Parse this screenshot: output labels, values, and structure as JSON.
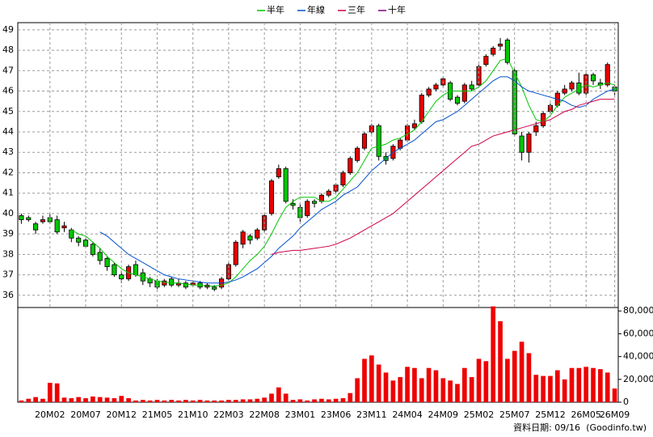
{
  "chart_data": [
    {
      "type": "candlestick",
      "open": [
        39.9,
        39.8,
        39.5,
        39.6,
        39.8,
        39.7,
        39.3,
        39.2,
        38.8,
        38.7,
        38.5,
        38.1,
        37.8,
        37.5,
        37.0,
        36.8,
        37.5,
        37.1,
        36.8,
        36.7,
        36.5,
        36.8,
        36.5,
        36.6,
        36.5,
        36.6,
        36.4,
        36.4,
        36.4,
        36.8,
        37.5,
        38.5,
        38.9,
        38.8,
        39.2,
        40.0,
        41.8,
        42.2,
        40.5,
        40.3,
        39.9,
        40.6,
        40.6,
        40.9,
        41.1,
        41.4,
        42.0,
        42.6,
        43.2,
        44.0,
        44.3,
        42.8,
        42.7,
        43.2,
        43.6,
        44.2,
        44.5,
        45.8,
        46.1,
        46.3,
        46.4,
        45.7,
        45.5,
        46.3,
        46.3,
        47.3,
        47.8,
        48.2,
        48.5,
        47.0,
        43.8,
        43.0,
        44.0,
        44.3,
        45.0,
        45.3,
        45.9,
        46.1,
        46.4,
        45.9,
        46.8,
        46.4,
        46.3,
        46.2
      ],
      "high": [
        40.0,
        39.9,
        39.6,
        39.9,
        40.0,
        39.9,
        39.6,
        39.3,
        38.9,
        38.8,
        38.6,
        38.3,
        37.9,
        37.6,
        37.2,
        37.5,
        37.7,
        37.3,
        36.9,
        36.8,
        36.8,
        36.9,
        36.8,
        36.7,
        36.7,
        36.7,
        36.6,
        36.5,
        36.9,
        37.6,
        38.7,
        39.2,
        39.0,
        39.3,
        40.0,
        41.7,
        42.4,
        42.3,
        40.7,
        40.5,
        40.7,
        40.7,
        41.0,
        41.2,
        41.5,
        42.1,
        42.8,
        43.3,
        44.0,
        44.4,
        44.4,
        43.0,
        43.4,
        43.7,
        44.4,
        44.6,
        45.9,
        46.2,
        46.4,
        46.7,
        46.5,
        45.8,
        46.4,
        46.5,
        47.3,
        47.8,
        48.2,
        48.6,
        48.6,
        47.1,
        44.0,
        44.0,
        44.5,
        45.0,
        45.4,
        46.0,
        46.3,
        46.5,
        46.9,
        46.9,
        46.9,
        46.6,
        47.4,
        46.3
      ],
      "low": [
        39.5,
        39.6,
        39.0,
        39.5,
        39.5,
        39.0,
        39.1,
        38.6,
        38.4,
        38.3,
        37.9,
        37.5,
        37.2,
        36.9,
        36.6,
        36.7,
        36.9,
        36.5,
        36.4,
        36.3,
        36.4,
        36.4,
        36.4,
        36.3,
        36.4,
        36.3,
        36.3,
        36.2,
        36.3,
        36.7,
        37.4,
        38.3,
        38.5,
        38.7,
        39.1,
        39.9,
        41.7,
        40.5,
        40.2,
        39.6,
        39.8,
        40.3,
        40.5,
        40.8,
        41.0,
        41.3,
        41.9,
        42.5,
        43.1,
        43.9,
        42.6,
        42.4,
        42.6,
        43.1,
        43.5,
        44.1,
        44.4,
        45.7,
        46.0,
        46.2,
        45.5,
        45.3,
        45.4,
        46.0,
        46.2,
        47.2,
        47.7,
        48.0,
        47.3,
        43.8,
        42.6,
        42.5,
        43.8,
        44.2,
        44.9,
        45.2,
        45.8,
        46.0,
        45.8,
        45.8,
        46.3,
        46.1,
        46.2,
        45.8
      ],
      "close": [
        39.7,
        39.7,
        39.2,
        39.7,
        39.6,
        39.1,
        39.4,
        38.8,
        38.6,
        38.4,
        38.0,
        37.7,
        37.4,
        37.0,
        36.8,
        37.4,
        37.0,
        36.7,
        36.6,
        36.4,
        36.7,
        36.5,
        36.6,
        36.4,
        36.6,
        36.4,
        36.5,
        36.3,
        36.8,
        37.5,
        38.6,
        39.1,
        38.7,
        39.2,
        39.9,
        41.6,
        42.2,
        40.6,
        40.4,
        39.8,
        40.6,
        40.5,
        40.9,
        41.1,
        41.4,
        42.0,
        42.7,
        43.2,
        43.9,
        44.3,
        42.8,
        42.6,
        43.3,
        43.6,
        44.3,
        44.4,
        45.8,
        46.1,
        46.3,
        46.6,
        45.6,
        45.4,
        46.3,
        46.1,
        47.2,
        47.7,
        48.1,
        48.3,
        47.4,
        43.9,
        43.0,
        43.9,
        44.3,
        44.9,
        45.3,
        45.9,
        46.1,
        46.4,
        45.9,
        46.8,
        46.5,
        46.3,
        47.3,
        46.0
      ],
      "up_color": "#e60000",
      "down_color": "#00c800",
      "series": [
        {
          "name": "半年",
          "color": "#00c800",
          "values": [
            null,
            null,
            null,
            null,
            null,
            null,
            null,
            39.2,
            39.0,
            38.9,
            38.6,
            38.3,
            37.9,
            37.6,
            37.3,
            37.1,
            37.0,
            36.9,
            36.8,
            36.7,
            36.65,
            36.6,
            36.6,
            36.55,
            36.5,
            36.5,
            36.45,
            36.45,
            36.5,
            36.6,
            36.9,
            37.3,
            37.7,
            38.0,
            38.4,
            39.0,
            39.7,
            40.3,
            40.6,
            40.8,
            40.8,
            40.8,
            40.6,
            40.6,
            40.8,
            41.2,
            41.6,
            42.0,
            42.6,
            43.2,
            43.3,
            43.4,
            43.6,
            43.7,
            43.9,
            44.1,
            44.5,
            45.0,
            45.5,
            45.8,
            46.0,
            46.0,
            46.0,
            46.0,
            46.2,
            46.5,
            47.0,
            47.5,
            47.6,
            46.9,
            46.2,
            45.3,
            44.6,
            44.5,
            44.8,
            45.3,
            45.7,
            45.9,
            46.1,
            46.3,
            46.2,
            46.3,
            46.4,
            46.3
          ]
        },
        {
          "name": "年線",
          "color": "#0050d0",
          "values": [
            null,
            null,
            null,
            null,
            null,
            null,
            null,
            null,
            null,
            null,
            null,
            39.1,
            38.9,
            38.6,
            38.3,
            38.0,
            37.8,
            37.6,
            37.4,
            37.2,
            37.0,
            36.9,
            36.8,
            36.75,
            36.7,
            36.65,
            36.6,
            36.6,
            36.6,
            36.65,
            36.75,
            36.9,
            37.1,
            37.3,
            37.6,
            37.9,
            38.3,
            38.6,
            38.9,
            39.3,
            39.6,
            39.9,
            40.2,
            40.4,
            40.6,
            40.9,
            41.1,
            41.3,
            41.7,
            42.1,
            42.4,
            42.7,
            43.0,
            43.2,
            43.4,
            43.6,
            43.9,
            44.2,
            44.5,
            44.6,
            44.8,
            45.0,
            45.3,
            45.6,
            45.9,
            46.2,
            46.5,
            46.7,
            46.7,
            46.5,
            46.2,
            46.0,
            45.9,
            45.8,
            45.7,
            45.6,
            45.5,
            45.3,
            45.2,
            45.3,
            45.6,
            45.8,
            46.0,
            46.1
          ]
        },
        {
          "name": "三年",
          "color": "#d0004a",
          "values": [
            null,
            null,
            null,
            null,
            null,
            null,
            null,
            null,
            null,
            null,
            null,
            null,
            null,
            null,
            null,
            null,
            null,
            null,
            null,
            null,
            null,
            null,
            null,
            null,
            null,
            null,
            null,
            null,
            null,
            null,
            null,
            null,
            null,
            null,
            null,
            38.0,
            38.1,
            38.15,
            38.2,
            38.2,
            38.25,
            38.3,
            38.35,
            38.4,
            38.5,
            38.65,
            38.8,
            39.0,
            39.2,
            39.4,
            39.6,
            39.8,
            40.0,
            40.3,
            40.6,
            40.9,
            41.2,
            41.5,
            41.8,
            42.1,
            42.4,
            42.7,
            43.0,
            43.3,
            43.4,
            43.6,
            43.8,
            43.9,
            44.0,
            44.1,
            44.2,
            44.3,
            44.4,
            44.5,
            44.6,
            44.8,
            45.0,
            45.1,
            45.3,
            45.4,
            45.5,
            45.6,
            45.6,
            45.6
          ]
        },
        {
          "name": "十年",
          "color": "#800080",
          "values": [
            null,
            null,
            null,
            null,
            null,
            null,
            null,
            null,
            null,
            null,
            null,
            null,
            null,
            null,
            null,
            null,
            null,
            null,
            null,
            null,
            null,
            null,
            null,
            null,
            null,
            null,
            null,
            null,
            null,
            null,
            null,
            null,
            null,
            null,
            null,
            null,
            null,
            null,
            null,
            null,
            null,
            null,
            null,
            null,
            null,
            null,
            null,
            null,
            null,
            null,
            null,
            null,
            null,
            null,
            null,
            null,
            null,
            null,
            null,
            null,
            null,
            null,
            null,
            null,
            null,
            null,
            null,
            null,
            null,
            null,
            null,
            null,
            null,
            null,
            null,
            null,
            null,
            null,
            null,
            null,
            null,
            null,
            null,
            null
          ]
        }
      ],
      "legend": "top",
      "ylim": [
        35.4,
        49.35
      ],
      "yticks": [
        36,
        37,
        38,
        39,
        40,
        41,
        42,
        43,
        44,
        45,
        46,
        47,
        48,
        49
      ],
      "grid": true
    },
    {
      "type": "bar",
      "categories": [
        null,
        null,
        null,
        null,
        "20M02",
        null,
        null,
        null,
        null,
        "20M07",
        null,
        null,
        null,
        null,
        "20M12",
        null,
        null,
        null,
        null,
        "21M05",
        null,
        null,
        null,
        null,
        "21M10",
        null,
        null,
        null,
        null,
        "22M03",
        null,
        null,
        null,
        null,
        "22M08",
        null,
        null,
        null,
        null,
        "23M01",
        null,
        null,
        null,
        null,
        "23M06",
        null,
        null,
        null,
        null,
        "23M11",
        null,
        null,
        null,
        null,
        "24M04",
        null,
        null,
        null,
        null,
        "24M09",
        null,
        null,
        null,
        null,
        "25M02",
        null,
        null,
        null,
        null,
        "25M07",
        null,
        null,
        null,
        null,
        "25M12",
        null,
        null,
        null,
        null,
        "26M05",
        null,
        null,
        null,
        "26M09"
      ],
      "values": [
        1500,
        3000,
        4500,
        3000,
        17000,
        16500,
        4000,
        3500,
        4500,
        3500,
        5000,
        4500,
        4000,
        3500,
        5500,
        3500,
        1500,
        2000,
        1500,
        2000,
        1500,
        2000,
        1500,
        2000,
        1500,
        2000,
        1500,
        1500,
        1500,
        2000,
        2000,
        2500,
        2500,
        3000,
        4000,
        7500,
        13000,
        7500,
        2000,
        2500,
        1500,
        2500,
        3000,
        2500,
        3000,
        3500,
        8000,
        21000,
        38000,
        41000,
        33000,
        26000,
        19000,
        22000,
        31000,
        30000,
        21000,
        30000,
        28000,
        21000,
        19000,
        16000,
        30000,
        22000,
        38000,
        36000,
        84000,
        71000,
        38000,
        45000,
        53000,
        43000,
        24000,
        23000,
        23000,
        28000,
        20000,
        30000,
        30000,
        31000,
        30000,
        29000,
        26000,
        12000
      ],
      "color": "#ee0000",
      "ylim": [
        0,
        83000
      ],
      "yticks": [
        0,
        {
          "value": 20000,
          "label": "20,000"
        },
        {
          "value": 40000,
          "label": "40,000"
        },
        {
          "value": 60000,
          "label": "60,000"
        },
        {
          "value": 80000,
          "label": "80,000"
        }
      ],
      "annotations": [
        "資料日期: 09/16",
        "(Goodinfo.tw)"
      ]
    }
  ]
}
